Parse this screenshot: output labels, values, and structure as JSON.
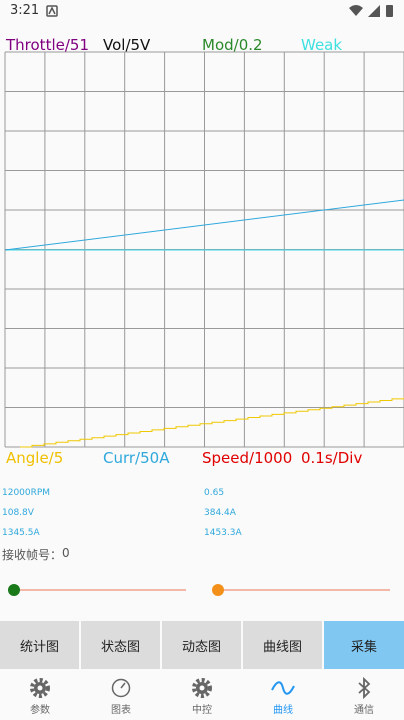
{
  "status_bar": {
    "time": "3:21"
  },
  "plot": {
    "top_legend": [
      "Throttle/51",
      "Vol/5V",
      "Mod/0.2",
      "Weak"
    ],
    "bottom_legend": [
      "Angle/5",
      "Curr/50A",
      "Speed/1000",
      "0.1s/Div"
    ]
  },
  "readings": [
    [
      "12000RPM",
      "0.65"
    ],
    [
      "108.8V",
      "384.4A"
    ],
    [
      "1345.5A",
      "1453.3A"
    ]
  ],
  "frame": {
    "label": "接收帧号：",
    "value": "0"
  },
  "buttons": [
    "统计图",
    "状态图",
    "动态图",
    "曲线图",
    "采集"
  ],
  "nav": [
    "参数",
    "图表",
    "中控",
    "曲线",
    "通信"
  ]
}
